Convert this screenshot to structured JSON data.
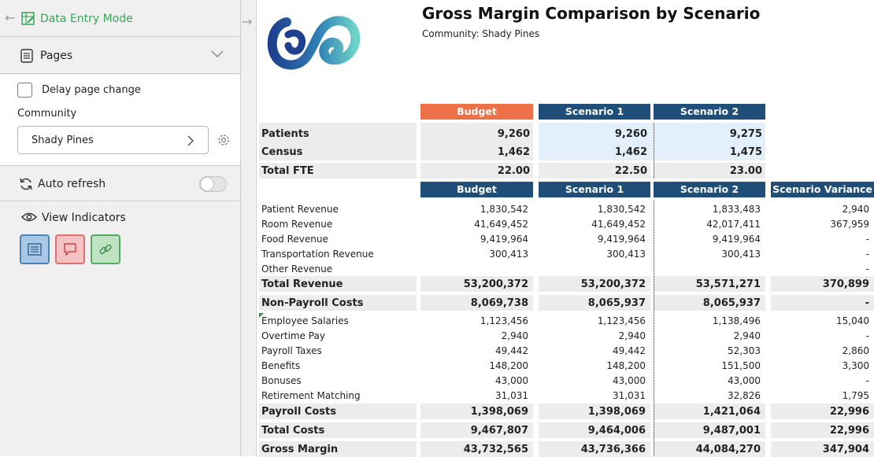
{
  "sidebar": {
    "mode_label": "Data Entry Mode",
    "pages_label": "Pages",
    "delay_label": "Delay page change",
    "community_label": "Community",
    "community_value": "Shady Pines",
    "auto_refresh_label": "Auto refresh",
    "view_indicators_label": "View Indicators",
    "indicator_icons": [
      "list-icon",
      "comment-icon",
      "link-icon"
    ],
    "colors": {
      "accent_green": "#3aa65a"
    }
  },
  "report": {
    "title": "Gross Margin Comparison by Scenario",
    "subtitle": "Community: Shady Pines",
    "top_headers": [
      "Budget",
      "Scenario 1",
      "Scenario 2"
    ],
    "stat_rows": [
      {
        "label": "Patients",
        "values": [
          "9,260",
          "9,260",
          "9,275"
        ]
      },
      {
        "label": "Census",
        "values": [
          "1,462",
          "1,462",
          "1,475"
        ]
      },
      {
        "label": "Total FTE",
        "values": [
          "22.00",
          "22.50",
          "23.00"
        ]
      }
    ],
    "main_headers": [
      "Budget",
      "Scenario 1",
      "Scenario 2",
      "Scenario Variance"
    ],
    "rows": [
      {
        "label": "Patient Revenue",
        "values": [
          "1,830,542",
          "1,830,542",
          "1,833,483",
          "2,940"
        ],
        "style": "detail"
      },
      {
        "label": "Room Revenue",
        "values": [
          "41,649,452",
          "41,649,452",
          "42,017,411",
          "367,959"
        ],
        "style": "detail"
      },
      {
        "label": "Food Revenue",
        "values": [
          "9,419,964",
          "9,419,964",
          "9,419,964",
          "-"
        ],
        "style": "detail"
      },
      {
        "label": "Transportation Revenue",
        "values": [
          "300,413",
          "300,413",
          "300,413",
          "-"
        ],
        "style": "detail"
      },
      {
        "label": "Other Revenue",
        "values": [
          "",
          "",
          "",
          "-"
        ],
        "style": "detail"
      },
      {
        "label": "Total Revenue",
        "values": [
          "53,200,372",
          "53,200,372",
          "53,571,271",
          "370,899"
        ],
        "style": "total"
      },
      {
        "label": "Non-Payroll Costs",
        "values": [
          "8,069,738",
          "8,065,937",
          "8,065,937",
          "-"
        ],
        "style": "total"
      },
      {
        "label": "Employee Salaries",
        "values": [
          "1,123,456",
          "1,123,456",
          "1,138,496",
          "15,040"
        ],
        "style": "detail"
      },
      {
        "label": "Overtime Pay",
        "values": [
          "2,940",
          "2,940",
          "2,940",
          "-"
        ],
        "style": "detail"
      },
      {
        "label": "Payroll Taxes",
        "values": [
          "49,442",
          "49,442",
          "52,303",
          "2,860"
        ],
        "style": "detail"
      },
      {
        "label": "Benefits",
        "values": [
          "148,200",
          "148,200",
          "151,500",
          "3,300"
        ],
        "style": "detail"
      },
      {
        "label": "Bonuses",
        "values": [
          "43,000",
          "43,000",
          "43,000",
          "-"
        ],
        "style": "detail"
      },
      {
        "label": "Retirement Matching",
        "values": [
          "31,031",
          "31,031",
          "32,826",
          "1,795"
        ],
        "style": "detail"
      },
      {
        "label": "Payroll Costs",
        "values": [
          "1,398,069",
          "1,398,069",
          "1,421,064",
          "22,996"
        ],
        "style": "total"
      },
      {
        "label": "Total Costs",
        "values": [
          "9,467,807",
          "9,464,006",
          "9,487,001",
          "22,996"
        ],
        "style": "total"
      },
      {
        "label": "Gross Margin",
        "values": [
          "43,732,565",
          "43,736,366",
          "44,084,270",
          "347,904"
        ],
        "style": "total"
      }
    ],
    "colors": {
      "budget_header": "#ec7149",
      "scenario_header": "#1f4e79",
      "band": "#ececec",
      "input_band": "#e3f0fc"
    }
  }
}
